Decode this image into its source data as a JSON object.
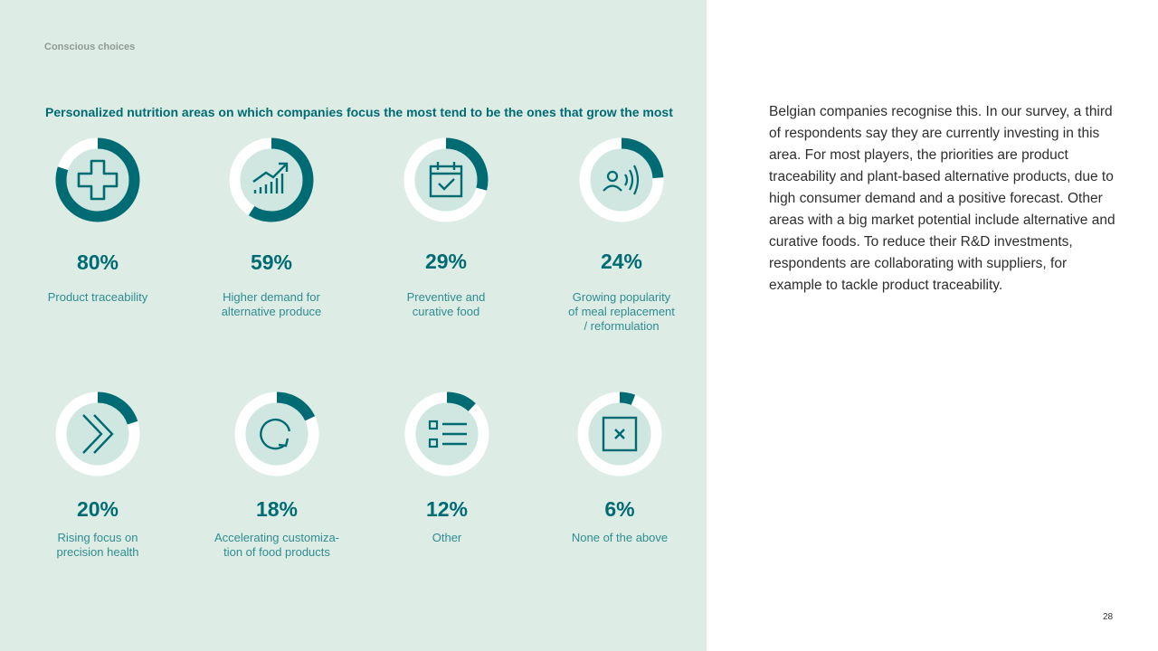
{
  "section_label": "Conscious choices",
  "chart_data": {
    "type": "donut",
    "title": "Personalized nutrition areas on which companies focus the most tend to be the ones that grow the most",
    "unit": "%",
    "items": [
      {
        "label_lines": [
          "Product traceability"
        ],
        "value": 80,
        "value_label": "80%",
        "icon": "medical-cross-icon"
      },
      {
        "label_lines": [
          "Higher demand for",
          "alternative produce"
        ],
        "value": 59,
        "value_label": "59%",
        "icon": "growth-chart-icon"
      },
      {
        "label_lines": [
          "Preventive and",
          "curative food"
        ],
        "value": 29,
        "value_label": "29%",
        "icon": "calendar-check-icon"
      },
      {
        "label_lines": [
          "Growing popularity",
          "of meal replacement",
          "/ reformulation"
        ],
        "value": 24,
        "value_label": "24%",
        "icon": "person-broadcast-icon"
      },
      {
        "label_lines": [
          "Rising focus on",
          "precision health"
        ],
        "value": 20,
        "value_label": "20%",
        "icon": "double-chevron-right-icon"
      },
      {
        "label_lines": [
          "Accelerating customiza-",
          "tion of food products"
        ],
        "value": 18,
        "value_label": "18%",
        "icon": "refresh-arrow-icon"
      },
      {
        "label_lines": [
          "Other"
        ],
        "value": 12,
        "value_label": "12%",
        "icon": "list-icon"
      },
      {
        "label_lines": [
          "None of the above"
        ],
        "value": 6,
        "value_label": "6%",
        "icon": "x-box-icon"
      }
    ],
    "colors": {
      "filled": "#006b73",
      "track": "#ffffff",
      "inner": "#cfe7e0"
    }
  },
  "body_text": "Belgian companies recognise this. In our survey, a third of respondents say they are currently investing in this area. For most players, the priorities are product traceability and plant-based alternative products, due to high consumer demand and a positive forecast. Other areas with a big market potential include alternative and curative foods. To reduce their R&D investments, respondents are collaborating with suppliers, for example to tackle product traceability.",
  "page_number": "28"
}
